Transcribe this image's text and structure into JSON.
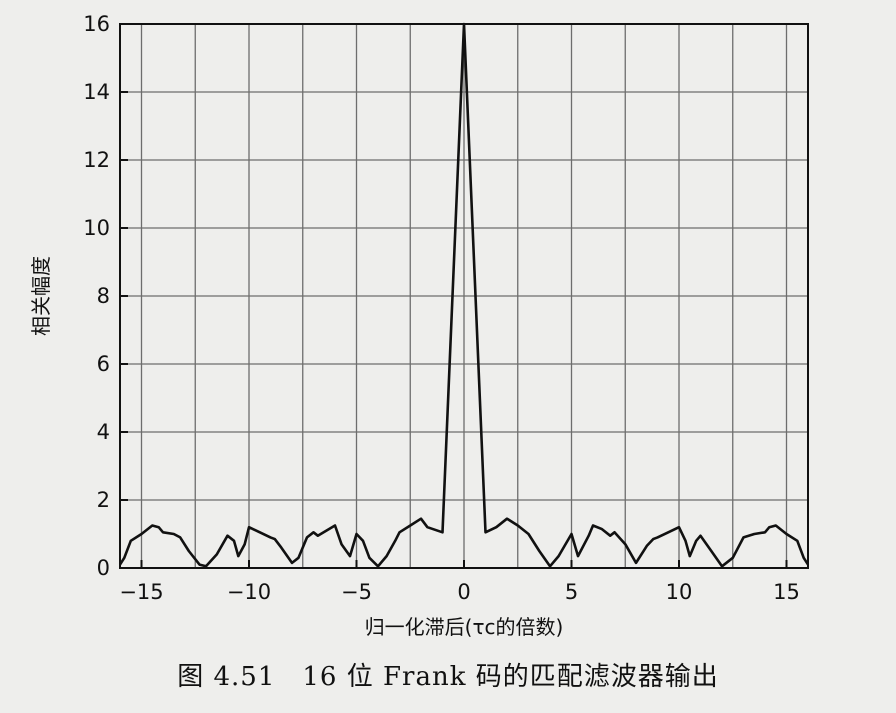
{
  "chart_data": {
    "type": "line",
    "title": "",
    "xlabel": "归一化滞后(τc的倍数)",
    "ylabel": "相关幅度",
    "xlim": [
      -16,
      16
    ],
    "ylim": [
      0,
      16
    ],
    "xticks": [
      -15,
      -10,
      -5,
      0,
      5,
      10,
      15
    ],
    "yticks": [
      0,
      2,
      4,
      6,
      8,
      10,
      12,
      14,
      16
    ],
    "grid": true,
    "legend": "none",
    "series": [
      {
        "color": "#111111",
        "points": [
          [
            -16.0,
            0.1
          ],
          [
            -15.8,
            0.3
          ],
          [
            -15.5,
            0.8
          ],
          [
            -15.0,
            1.0
          ],
          [
            -14.5,
            1.25
          ],
          [
            -14.2,
            1.2
          ],
          [
            -14.0,
            1.05
          ],
          [
            -13.5,
            1.0
          ],
          [
            -13.2,
            0.9
          ],
          [
            -12.8,
            0.5
          ],
          [
            -12.3,
            0.1
          ],
          [
            -12.0,
            0.05
          ],
          [
            -11.5,
            0.4
          ],
          [
            -11.0,
            0.95
          ],
          [
            -10.7,
            0.8
          ],
          [
            -10.5,
            0.35
          ],
          [
            -10.2,
            0.7
          ],
          [
            -10.0,
            1.2
          ],
          [
            -9.5,
            1.05
          ],
          [
            -9.0,
            0.9
          ],
          [
            -8.8,
            0.85
          ],
          [
            -8.5,
            0.6
          ],
          [
            -8.0,
            0.15
          ],
          [
            -7.7,
            0.3
          ],
          [
            -7.3,
            0.9
          ],
          [
            -7.0,
            1.05
          ],
          [
            -6.8,
            0.95
          ],
          [
            -6.4,
            1.1
          ],
          [
            -6.0,
            1.25
          ],
          [
            -5.7,
            0.7
          ],
          [
            -5.3,
            0.35
          ],
          [
            -5.0,
            1.0
          ],
          [
            -4.7,
            0.8
          ],
          [
            -4.4,
            0.3
          ],
          [
            -4.0,
            0.05
          ],
          [
            -3.6,
            0.35
          ],
          [
            -3.2,
            0.8
          ],
          [
            -3.0,
            1.05
          ],
          [
            -2.5,
            1.25
          ],
          [
            -2.0,
            1.45
          ],
          [
            -1.7,
            1.2
          ],
          [
            -1.0,
            1.05
          ],
          [
            0.0,
            16.0
          ],
          [
            1.0,
            1.05
          ],
          [
            1.5,
            1.2
          ],
          [
            2.0,
            1.45
          ],
          [
            2.5,
            1.25
          ],
          [
            3.0,
            1.0
          ],
          [
            3.5,
            0.5
          ],
          [
            4.0,
            0.05
          ],
          [
            4.4,
            0.35
          ],
          [
            5.0,
            1.0
          ],
          [
            5.3,
            0.35
          ],
          [
            5.8,
            0.95
          ],
          [
            6.0,
            1.25
          ],
          [
            6.4,
            1.15
          ],
          [
            6.8,
            0.95
          ],
          [
            7.0,
            1.05
          ],
          [
            7.5,
            0.7
          ],
          [
            8.0,
            0.15
          ],
          [
            8.5,
            0.65
          ],
          [
            8.8,
            0.85
          ],
          [
            9.0,
            0.9
          ],
          [
            9.5,
            1.05
          ],
          [
            10.0,
            1.2
          ],
          [
            10.3,
            0.8
          ],
          [
            10.5,
            0.35
          ],
          [
            10.8,
            0.8
          ],
          [
            11.0,
            0.95
          ],
          [
            11.5,
            0.5
          ],
          [
            12.0,
            0.05
          ],
          [
            12.5,
            0.3
          ],
          [
            13.0,
            0.9
          ],
          [
            13.5,
            1.0
          ],
          [
            14.0,
            1.05
          ],
          [
            14.2,
            1.2
          ],
          [
            14.5,
            1.25
          ],
          [
            15.0,
            1.0
          ],
          [
            15.5,
            0.8
          ],
          [
            15.8,
            0.3
          ],
          [
            16.0,
            0.1
          ]
        ]
      }
    ]
  },
  "caption": "图 4.51　16 位 Frank 码的匹配滤波器输出"
}
